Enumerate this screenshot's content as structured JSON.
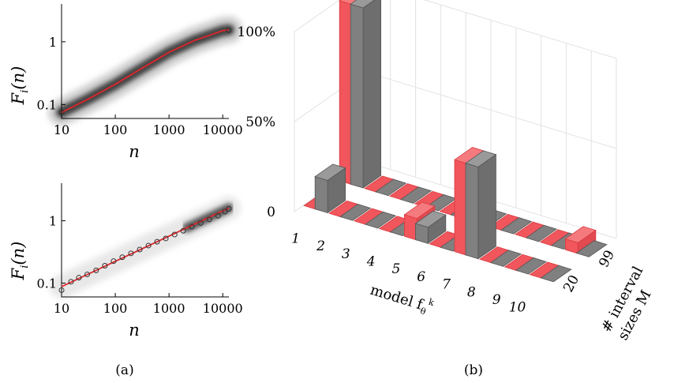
{
  "chart_data": [
    {
      "panel": "(a)",
      "type": "line",
      "xlabel": "n",
      "ylabel": "F_i(n)",
      "x_scale": "log",
      "y_scale": "log",
      "xlim": [
        10,
        13000
      ],
      "ylim": [
        0.06,
        4
      ],
      "x_ticks": [
        "10",
        "100",
        "1000",
        "10000"
      ],
      "y_ticks": [
        "0.1",
        "1"
      ],
      "series": [
        {
          "x": [
            10,
            30,
            100,
            300,
            1000,
            3000,
            10000,
            13000
          ],
          "y": [
            0.075,
            0.12,
            0.21,
            0.37,
            0.68,
            1.05,
            1.5,
            1.55
          ],
          "color": "#e0262b"
        }
      ],
      "circles": {
        "x": [
          10,
          13000
        ],
        "y": [
          0.075,
          1.52
        ]
      }
    },
    {
      "panel": "(a)",
      "type": "scatter",
      "xlabel": "n",
      "ylabel": "F_i(n)",
      "x_scale": "log",
      "y_scale": "log",
      "xlim": [
        10,
        13000
      ],
      "ylim": [
        0.06,
        4
      ],
      "x_ticks": [
        "10",
        "100",
        "1000",
        "10000"
      ],
      "y_ticks": [
        "0.1",
        "1"
      ],
      "fit_line": {
        "x": [
          10,
          13000
        ],
        "y": [
          0.088,
          1.6
        ],
        "color": "#e0262b"
      },
      "circles": {
        "x": [
          10,
          15,
          21,
          30,
          44,
          64,
          93,
          135,
          196,
          285,
          414,
          600,
          870,
          1270,
          1840,
          2670,
          3880,
          5630,
          8180,
          11000,
          13000
        ],
        "y": [
          0.077,
          0.105,
          0.122,
          0.138,
          0.16,
          0.19,
          0.225,
          0.26,
          0.3,
          0.345,
          0.4,
          0.46,
          0.52,
          0.6,
          0.69,
          0.8,
          0.92,
          1.05,
          1.2,
          1.4,
          1.55
        ]
      }
    },
    {
      "panel": "(b)",
      "type": "bar",
      "xlabel": "model f_θ^k",
      "ylabel": "# interval sizes M",
      "categories": [
        "1",
        "2",
        "3",
        "4",
        "5",
        "6",
        "7",
        "8",
        "9",
        "10"
      ],
      "z_ticks": [
        "0",
        "50%",
        "100%"
      ],
      "zlim": [
        0,
        100
      ],
      "series": [
        {
          "name": "99",
          "color": "#f0565c",
          "values": [
            100,
            0,
            0,
            0,
            0,
            0,
            0,
            0,
            0,
            6
          ]
        },
        {
          "name": "99",
          "color": "#808080",
          "values": [
            100,
            0,
            0,
            0,
            0,
            0,
            0,
            0,
            0,
            0
          ]
        },
        {
          "name": "20",
          "color": "#f0565c",
          "values": [
            0,
            0,
            0,
            0,
            12,
            0,
            51,
            0,
            0,
            0
          ]
        },
        {
          "name": "20",
          "color": "#808080",
          "values": [
            18,
            0,
            0,
            0,
            9,
            0,
            51,
            0,
            0,
            0
          ]
        }
      ],
      "depth_ticks": [
        "20",
        "99"
      ]
    }
  ],
  "captions": {
    "a": "(a)",
    "b": "(b)"
  },
  "labels": {
    "n_top": "n",
    "n_bottom": "n",
    "F_top": "F",
    "F_sub_top": "i",
    "F_paren_top": "(n)",
    "F_bottom": "F",
    "F_sub_bottom": "i",
    "F_paren_bottom": "(n)",
    "model_word": "model f",
    "model_sub": "θ",
    "model_sup": "k",
    "interval_line1": "# interval",
    "interval_line2": "sizes M"
  },
  "colors": {
    "red": "#f0565c",
    "red_dark": "#d93a3f",
    "gray": "#808080",
    "gray_dark": "#555555",
    "fit": "#e0262b"
  }
}
